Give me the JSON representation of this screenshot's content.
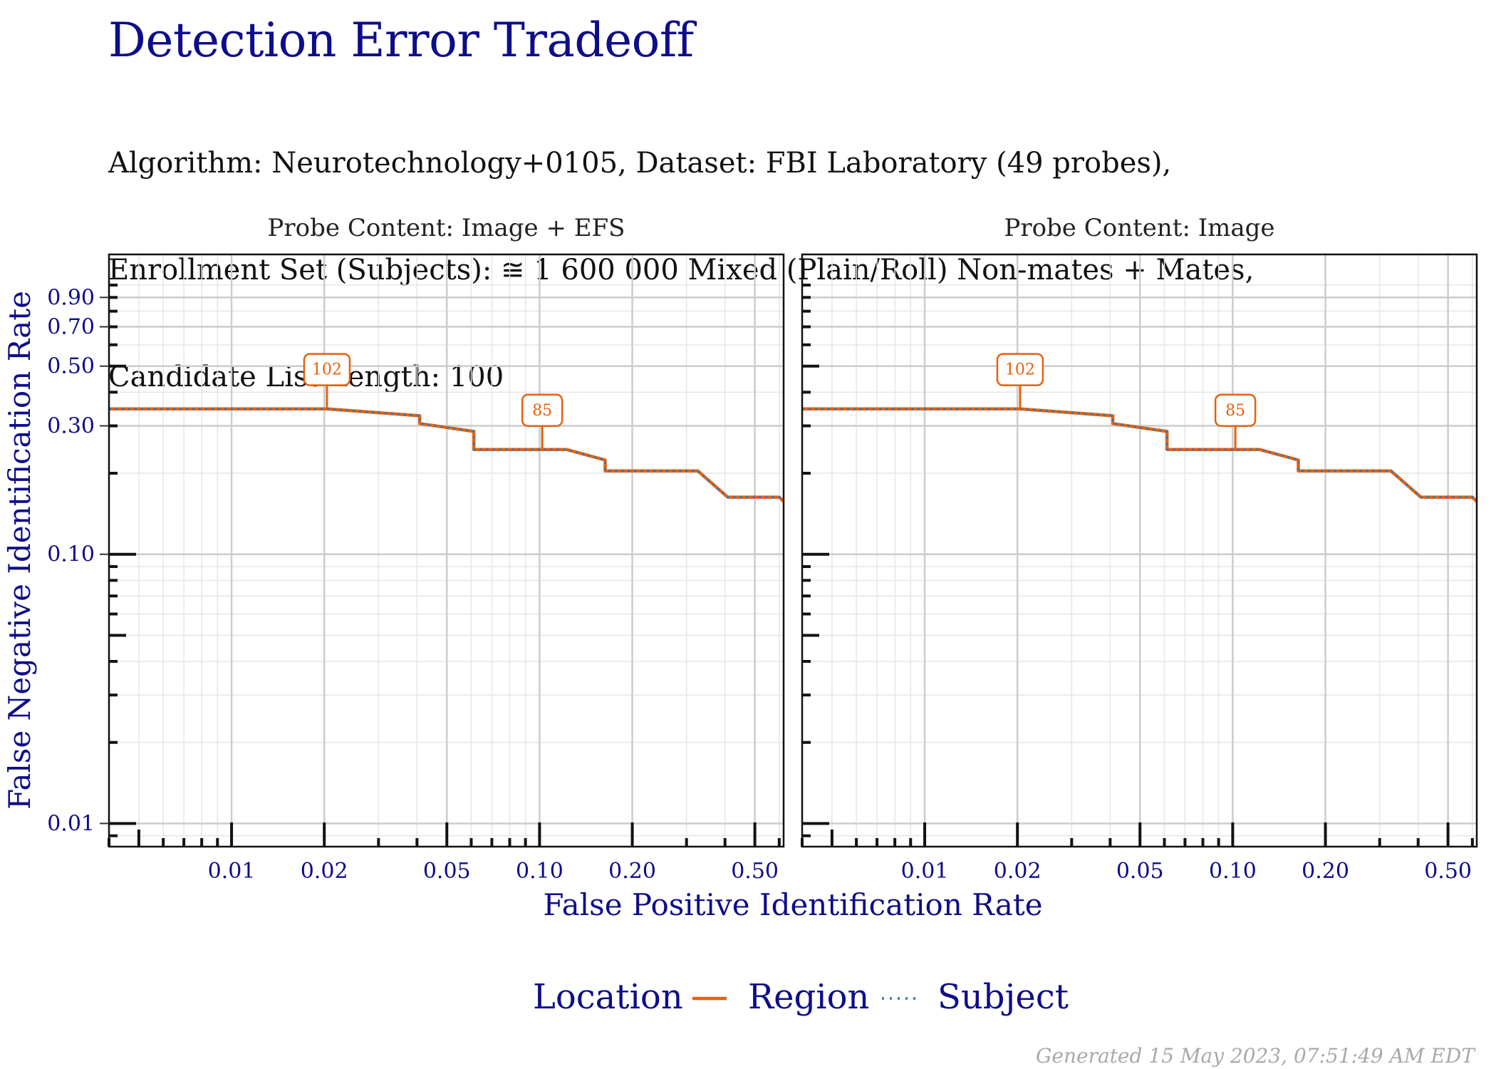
{
  "title": "Detection Error Tradeoff",
  "subtitle_lines": [
    "Algorithm: Neurotechnology+0105, Dataset: FBI Laboratory (49 probes),",
    "Enrollment Set (Subjects): ≅ 1 600 000 Mixed (Plain/Roll) Non-mates + Mates,",
    "Candidate List Length: 100"
  ],
  "footer": "Generated 15 May 2023, 07:51:49 AM EDT",
  "colors": {
    "region": "#e8600c",
    "subject": "#1f7fc4",
    "axis_text": "#0d0d8a",
    "grid": "#cccccc"
  },
  "chart_data": {
    "type": "line",
    "x_scale": "log",
    "y_scale": "log",
    "xlabel": "False Positive Identification Rate",
    "ylabel": "False Negative Identification Rate",
    "xlim": [
      0.004,
      0.62
    ],
    "ylim": [
      0.0082,
      1.3
    ],
    "x_ticks": [
      0.01,
      0.02,
      0.05,
      0.1,
      0.2,
      0.5
    ],
    "x_tick_labels": [
      "0.01",
      "0.02",
      "0.05",
      "0.10",
      "0.20",
      "0.50"
    ],
    "y_ticks": [
      0.01,
      0.1,
      0.3,
      0.5,
      0.7,
      0.9
    ],
    "y_tick_labels": [
      "0.01",
      "0.10",
      "0.30",
      "0.50",
      "0.70",
      "0.90"
    ],
    "grid": true,
    "legend": {
      "title": "Location",
      "position": "bottom",
      "entries": [
        {
          "name": "Region",
          "style": "solid"
        },
        {
          "name": "Subject",
          "style": "dotted"
        }
      ]
    },
    "panels": [
      {
        "strip": "Probe Content: Image + EFS",
        "series": [
          {
            "name": "Region",
            "points": [
              [
                0.004,
                0.347
              ],
              [
                0.0204,
                0.347
              ],
              [
                0.0408,
                0.327
              ],
              [
                0.0408,
                0.306
              ],
              [
                0.0612,
                0.286
              ],
              [
                0.0612,
                0.245
              ],
              [
                0.1224,
                0.245
              ],
              [
                0.1633,
                0.224
              ],
              [
                0.1633,
                0.204
              ],
              [
                0.3265,
                0.204
              ],
              [
                0.4082,
                0.163
              ],
              [
                0.6,
                0.163
              ],
              [
                0.62,
                0.157
              ]
            ]
          },
          {
            "name": "Subject",
            "points": [
              [
                0.004,
                0.347
              ],
              [
                0.0204,
                0.347
              ],
              [
                0.0408,
                0.327
              ],
              [
                0.0408,
                0.306
              ],
              [
                0.0612,
                0.286
              ],
              [
                0.0612,
                0.245
              ],
              [
                0.1224,
                0.245
              ],
              [
                0.1633,
                0.224
              ],
              [
                0.1633,
                0.204
              ],
              [
                0.3265,
                0.204
              ],
              [
                0.4082,
                0.163
              ],
              [
                0.6,
                0.163
              ],
              [
                0.62,
                0.157
              ]
            ]
          }
        ],
        "annotations": [
          {
            "label": "102",
            "x": 0.0204,
            "y": 0.347
          },
          {
            "label": "85",
            "x": 0.102,
            "y": 0.245
          }
        ]
      },
      {
        "strip": "Probe Content: Image",
        "series": [
          {
            "name": "Region",
            "points": [
              [
                0.004,
                0.347
              ],
              [
                0.0204,
                0.347
              ],
              [
                0.0408,
                0.327
              ],
              [
                0.0408,
                0.306
              ],
              [
                0.0612,
                0.286
              ],
              [
                0.0612,
                0.245
              ],
              [
                0.1224,
                0.245
              ],
              [
                0.1633,
                0.224
              ],
              [
                0.1633,
                0.204
              ],
              [
                0.3265,
                0.204
              ],
              [
                0.4082,
                0.163
              ],
              [
                0.6,
                0.163
              ],
              [
                0.62,
                0.157
              ]
            ]
          },
          {
            "name": "Subject",
            "points": [
              [
                0.004,
                0.347
              ],
              [
                0.0204,
                0.347
              ],
              [
                0.0408,
                0.327
              ],
              [
                0.0408,
                0.306
              ],
              [
                0.0612,
                0.286
              ],
              [
                0.0612,
                0.245
              ],
              [
                0.1224,
                0.245
              ],
              [
                0.1633,
                0.224
              ],
              [
                0.1633,
                0.204
              ],
              [
                0.3265,
                0.204
              ],
              [
                0.4082,
                0.163
              ],
              [
                0.6,
                0.163
              ],
              [
                0.62,
                0.157
              ]
            ]
          }
        ],
        "annotations": [
          {
            "label": "102",
            "x": 0.0204,
            "y": 0.347
          },
          {
            "label": "85",
            "x": 0.102,
            "y": 0.245
          }
        ]
      }
    ]
  }
}
